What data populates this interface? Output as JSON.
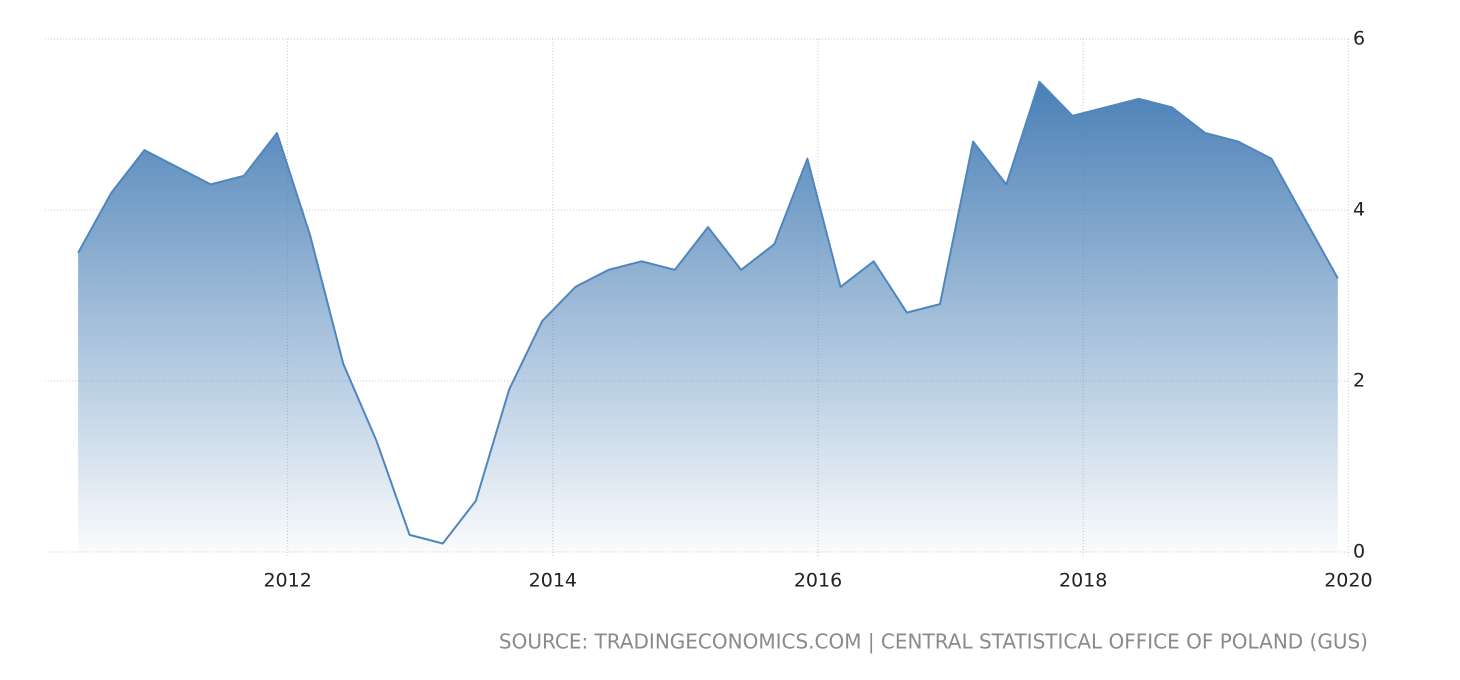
{
  "chart_data": {
    "type": "area",
    "source": "SOURCE: TRADINGECONOMICS.COM | CENTRAL STATISTICAL OFFICE OF POLAND (GUS)",
    "x": [
      2010.42,
      2010.67,
      2010.92,
      2011.17,
      2011.42,
      2011.67,
      2011.92,
      2012.17,
      2012.42,
      2012.67,
      2012.92,
      2013.17,
      2013.42,
      2013.67,
      2013.92,
      2014.17,
      2014.42,
      2014.67,
      2014.92,
      2015.17,
      2015.42,
      2015.67,
      2015.92,
      2016.17,
      2016.42,
      2016.67,
      2016.92,
      2017.17,
      2017.42,
      2017.67,
      2017.92,
      2018.17,
      2018.42,
      2018.67,
      2018.92,
      2019.17,
      2019.42,
      2019.67,
      2019.92
    ],
    "values": [
      3.5,
      4.2,
      4.7,
      4.5,
      4.3,
      4.4,
      4.9,
      3.7,
      2.2,
      1.3,
      0.2,
      0.1,
      0.6,
      1.9,
      2.7,
      3.1,
      3.3,
      3.4,
      3.3,
      3.8,
      3.3,
      3.6,
      4.6,
      3.1,
      3.4,
      2.8,
      2.9,
      4.8,
      4.3,
      5.5,
      5.1,
      5.2,
      5.3,
      5.2,
      4.9,
      4.8,
      4.6,
      3.9,
      3.2
    ],
    "color": "#4f86bd",
    "xlim": [
      2010.17,
      2020.05
    ],
    "xticks": [
      2012,
      2014,
      2016,
      2018,
      2020
    ],
    "ylim": [
      0,
      6
    ],
    "yticks": [
      0,
      2,
      4,
      6
    ],
    "grid": true
  }
}
